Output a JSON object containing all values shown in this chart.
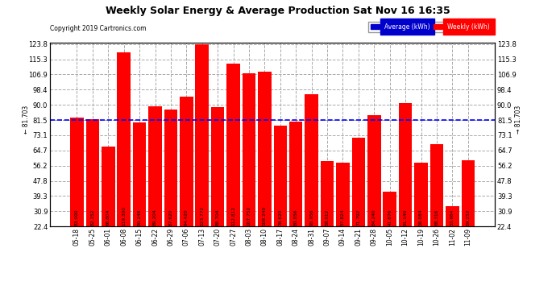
{
  "title": "Weekly Solar Energy & Average Production Sat Nov 16 16:35",
  "copyright": "Copyright 2019 Cartronics.com",
  "categories": [
    "05-18",
    "05-25",
    "06-01",
    "06-08",
    "06-15",
    "06-22",
    "06-29",
    "07-06",
    "07-13",
    "07-20",
    "07-27",
    "08-03",
    "08-10",
    "08-17",
    "08-24",
    "08-31",
    "09-07",
    "09-14",
    "09-21",
    "09-28",
    "10-05",
    "10-12",
    "10-19",
    "10-26",
    "11-02",
    "11-09"
  ],
  "values": [
    83.0,
    82.152,
    66.804,
    119.3,
    80.248,
    89.204,
    87.62,
    94.42,
    123.772,
    88.704,
    112.812,
    107.752,
    108.24,
    78.62,
    80.856,
    95.956,
    58.612,
    57.824,
    71.792,
    84.24,
    41.876,
    91.14,
    58.084,
    68.316,
    33.664,
    59.252
  ],
  "average": 81.703,
  "bar_color": "#FF0000",
  "average_line_color": "#0000FF",
  "background_color": "#FFFFFF",
  "plot_background": "#FFFFFF",
  "grid_color": "#AAAAAA",
  "title_color": "#000000",
  "copyright_color": "#000000",
  "bar_label_color": "#000000",
  "yticks": [
    22.4,
    30.9,
    39.3,
    47.8,
    56.2,
    64.7,
    73.1,
    81.5,
    90.0,
    98.4,
    106.9,
    115.3,
    123.8
  ],
  "ymin": 22.4,
  "ymax": 123.8,
  "legend_avg_color": "#0000CC",
  "legend_weekly_color": "#FF0000",
  "legend_avg_text": "Average (kWh)",
  "legend_weekly_text": "Weekly (kWh)",
  "avg_label_left": "← 81.703",
  "avg_label_right": "→ 81.703"
}
